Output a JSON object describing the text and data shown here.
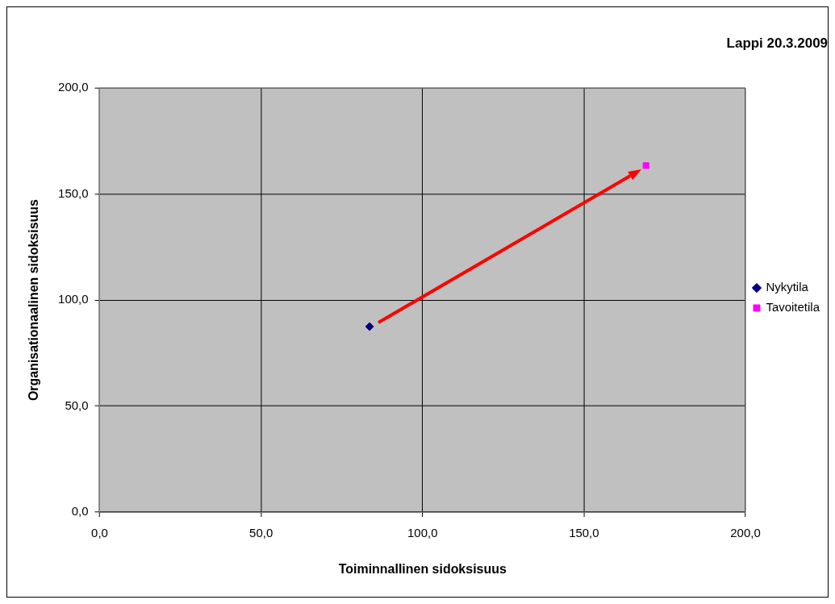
{
  "chart_data": {
    "type": "scatter",
    "title": "Lappi 20.3.2009",
    "xlabel": "Toiminnallinen sidoksisuus",
    "ylabel": "Organisationaalinen sidoksisuus",
    "series": [
      {
        "name": "Nykytila",
        "color": "#000080",
        "marker": "diamond",
        "x": [
          83.6
        ],
        "values": [
          87.5
        ]
      },
      {
        "name": "Tavoitetila",
        "color": "#ff00ff",
        "marker": "square",
        "x": [
          169.2
        ],
        "values": [
          163.4
        ]
      }
    ],
    "xlim": [
      0,
      200
    ],
    "ylim": [
      0,
      200
    ],
    "xticks": [
      {
        "value": 0,
        "label": "0,0"
      },
      {
        "value": 50,
        "label": "50,0"
      },
      {
        "value": 100,
        "label": "100,0"
      },
      {
        "value": 150,
        "label": "150,0"
      },
      {
        "value": 200,
        "label": "200,0"
      }
    ],
    "yticks": [
      {
        "value": 0,
        "label": "0,0"
      },
      {
        "value": 50,
        "label": "50,0"
      },
      {
        "value": 100,
        "label": "100,0"
      },
      {
        "value": 150,
        "label": "150,0"
      },
      {
        "value": 200,
        "label": "200,0"
      }
    ],
    "grid": true,
    "legend": "right"
  }
}
